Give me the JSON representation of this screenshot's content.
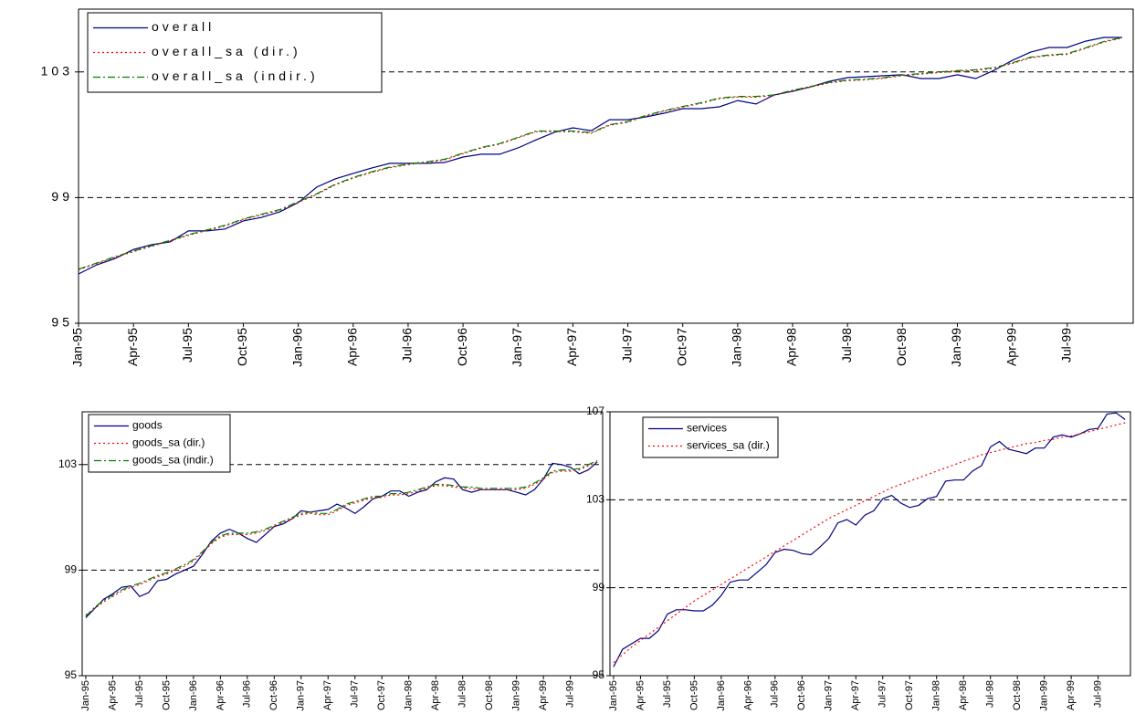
{
  "chart_data": [
    {
      "type": "line",
      "categories": [
        "Jan-95",
        null,
        null,
        "Apr-95",
        null,
        null,
        "Jul-95",
        null,
        null,
        "Oct-95",
        null,
        null,
        "Jan-96",
        null,
        null,
        "Apr-96",
        null,
        null,
        "Jul-96",
        null,
        null,
        "Oct-96",
        null,
        null,
        "Jan-97",
        null,
        null,
        "Apr-97",
        null,
        null,
        "Jul-97",
        null,
        null,
        "Oct-97",
        null,
        null,
        "Jan-98",
        null,
        null,
        "Apr-98",
        null,
        null,
        "Jul-98",
        null,
        null,
        "Oct-98",
        null,
        null,
        "Jan-99",
        null,
        null,
        "Apr-99",
        null,
        null,
        "Jul-99",
        null,
        null,
        null
      ],
      "series": [
        {
          "name": "overall",
          "color": "#000080",
          "values": [
            96.57,
            96.86,
            97.06,
            97.35,
            97.5,
            97.59,
            97.94,
            97.94,
            98.0,
            98.26,
            98.37,
            98.55,
            98.84,
            99.33,
            99.59,
            99.77,
            99.94,
            100.09,
            100.09,
            100.09,
            100.12,
            100.29,
            100.38,
            100.38,
            100.58,
            100.84,
            101.08,
            101.22,
            101.13,
            101.48,
            101.48,
            101.57,
            101.69,
            101.83,
            101.83,
            101.89,
            102.09,
            101.98,
            102.27,
            102.38,
            102.53,
            102.7,
            102.82,
            102.85,
            102.88,
            102.91,
            102.79,
            102.79,
            102.91,
            102.79,
            103.05,
            103.37,
            103.63,
            103.78,
            103.78,
            103.98,
            104.1,
            104.1
          ]
        },
        {
          "name": "overall_sa (dir.)",
          "color": "#ff0000",
          "values": [
            96.7,
            96.9,
            97.1,
            97.28,
            97.45,
            97.62,
            97.8,
            97.95,
            98.1,
            98.3,
            98.45,
            98.6,
            98.85,
            99.1,
            99.4,
            99.62,
            99.8,
            99.95,
            100.05,
            100.12,
            100.2,
            100.4,
            100.58,
            100.7,
            100.9,
            101.1,
            101.1,
            101.1,
            101.05,
            101.3,
            101.4,
            101.6,
            101.75,
            101.88,
            102.0,
            102.15,
            102.2,
            102.2,
            102.25,
            102.4,
            102.52,
            102.65,
            102.72,
            102.75,
            102.8,
            102.88,
            102.93,
            102.98,
            103.02,
            103.05,
            103.12,
            103.27,
            103.45,
            103.52,
            103.56,
            103.75,
            103.95,
            104.08
          ]
        },
        {
          "name": "overall_sa (indir.)",
          "color": "#008000",
          "values": [
            96.72,
            96.92,
            97.12,
            97.3,
            97.47,
            97.64,
            97.82,
            97.97,
            98.12,
            98.32,
            98.47,
            98.62,
            98.87,
            99.12,
            99.42,
            99.64,
            99.82,
            99.97,
            100.07,
            100.14,
            100.22,
            100.42,
            100.6,
            100.72,
            100.92,
            101.12,
            101.12,
            101.12,
            101.07,
            101.32,
            101.42,
            101.62,
            101.77,
            101.9,
            102.02,
            102.17,
            102.22,
            102.22,
            102.27,
            102.42,
            102.54,
            102.67,
            102.74,
            102.77,
            102.82,
            102.9,
            102.95,
            103.0,
            103.04,
            103.07,
            103.14,
            103.29,
            103.47,
            103.54,
            103.58,
            103.77,
            103.97,
            104.1
          ]
        }
      ],
      "ylim": [
        95,
        105
      ],
      "yticks": [
        95,
        99,
        103
      ],
      "grid": true,
      "legend": "top-left"
    },
    {
      "type": "line",
      "categories": [
        "Jan-95",
        null,
        null,
        "Apr-95",
        null,
        null,
        "Jul-95",
        null,
        null,
        "Oct-95",
        null,
        null,
        "Jan-96",
        null,
        null,
        "Apr-96",
        null,
        null,
        "Jul-96",
        null,
        null,
        "Oct-96",
        null,
        null,
        "Jan-97",
        null,
        null,
        "Apr-97",
        null,
        null,
        "Jul-97",
        null,
        null,
        "Oct-97",
        null,
        null,
        "Jan-98",
        null,
        null,
        "Apr-98",
        null,
        null,
        "Jul-98",
        null,
        null,
        "Oct-98",
        null,
        null,
        "Jan-99",
        null,
        null,
        "Apr-99",
        null,
        null,
        "Jul-99",
        null,
        null,
        null
      ],
      "series": [
        {
          "name": "goods",
          "color": "#000080",
          "values": [
            97.2,
            97.55,
            97.9,
            98.1,
            98.35,
            98.4,
            98.0,
            98.15,
            98.6,
            98.65,
            98.85,
            99.0,
            99.15,
            99.6,
            100.1,
            100.4,
            100.55,
            100.4,
            100.2,
            100.05,
            100.35,
            100.65,
            100.75,
            100.95,
            101.25,
            101.2,
            101.25,
            101.3,
            101.5,
            101.35,
            101.15,
            101.4,
            101.7,
            101.8,
            102.0,
            102.0,
            101.8,
            101.95,
            102.05,
            102.35,
            102.5,
            102.45,
            102.05,
            101.95,
            102.05,
            102.05,
            102.05,
            102.05,
            101.95,
            101.85,
            102.05,
            102.45,
            103.05,
            103.0,
            102.9,
            102.65,
            102.8,
            103.1
          ]
        },
        {
          "name": "goods_sa (dir.)",
          "color": "#ff0000",
          "values": [
            97.3,
            97.55,
            97.8,
            98.0,
            98.2,
            98.35,
            98.45,
            98.6,
            98.75,
            98.85,
            99.0,
            99.15,
            99.35,
            99.65,
            100.0,
            100.25,
            100.35,
            100.35,
            100.35,
            100.4,
            100.5,
            100.65,
            100.8,
            100.95,
            101.1,
            101.15,
            101.1,
            101.1,
            101.25,
            101.45,
            101.55,
            101.65,
            101.75,
            101.75,
            101.85,
            101.85,
            101.9,
            102.0,
            102.1,
            102.2,
            102.2,
            102.15,
            102.1,
            102.1,
            102.05,
            102.05,
            102.05,
            102.05,
            102.05,
            102.1,
            102.25,
            102.45,
            102.7,
            102.75,
            102.75,
            102.8,
            102.95,
            103.1
          ]
        },
        {
          "name": "goods_sa (indir.)",
          "color": "#008000",
          "values": [
            97.25,
            97.6,
            97.85,
            98.05,
            98.25,
            98.4,
            98.5,
            98.65,
            98.8,
            98.9,
            99.05,
            99.2,
            99.4,
            99.7,
            100.05,
            100.3,
            100.4,
            100.4,
            100.4,
            100.45,
            100.55,
            100.7,
            100.85,
            101.0,
            101.15,
            101.2,
            101.15,
            101.15,
            101.3,
            101.5,
            101.6,
            101.7,
            101.8,
            101.8,
            101.9,
            101.9,
            101.95,
            102.05,
            102.15,
            102.25,
            102.25,
            102.2,
            102.15,
            102.15,
            102.1,
            102.1,
            102.1,
            102.1,
            102.1,
            102.15,
            102.3,
            102.5,
            102.75,
            102.8,
            102.8,
            102.85,
            103.0,
            103.15
          ]
        }
      ],
      "ylim": [
        95,
        105
      ],
      "yticks": [
        95,
        99,
        103
      ],
      "grid": true,
      "legend": "top-left"
    },
    {
      "type": "line",
      "categories": [
        "Jan-95",
        null,
        null,
        "Apr-95",
        null,
        null,
        "Jul-95",
        null,
        null,
        "Oct-95",
        null,
        null,
        "Jan-96",
        null,
        null,
        "Apr-96",
        null,
        null,
        "Jul-96",
        null,
        null,
        "Oct-96",
        null,
        null,
        "Jan-97",
        null,
        null,
        "Apr-97",
        null,
        null,
        "Jul-97",
        null,
        null,
        "Oct-97",
        null,
        null,
        "Jan-98",
        null,
        null,
        "Apr-98",
        null,
        null,
        "Jul-98",
        null,
        null,
        "Oct-98",
        null,
        null,
        "Jan-99",
        null,
        null,
        "Apr-99",
        null,
        null,
        "Jul-99",
        null,
        null,
        null
      ],
      "series": [
        {
          "name": "services",
          "color": "#000080",
          "values": [
            95.4,
            96.2,
            96.45,
            96.7,
            96.7,
            97.05,
            97.8,
            98.0,
            98.0,
            97.95,
            97.95,
            98.2,
            98.65,
            99.25,
            99.35,
            99.35,
            99.7,
            100.05,
            100.6,
            100.75,
            100.7,
            100.55,
            100.5,
            100.85,
            101.25,
            101.95,
            102.1,
            101.85,
            102.3,
            102.5,
            103.05,
            103.2,
            102.85,
            102.65,
            102.75,
            103.05,
            103.15,
            103.85,
            103.9,
            103.9,
            104.3,
            104.55,
            105.4,
            105.65,
            105.3,
            105.2,
            105.1,
            105.35,
            105.35,
            105.85,
            105.95,
            105.85,
            106.0,
            106.2,
            106.25,
            106.9,
            106.95,
            106.65
          ]
        },
        {
          "name": "services_sa (dir.)",
          "color": "#ff0000",
          "values": [
            95.6,
            95.95,
            96.3,
            96.6,
            96.9,
            97.2,
            97.5,
            97.8,
            98.1,
            98.4,
            98.65,
            98.9,
            99.15,
            99.4,
            99.65,
            99.9,
            100.15,
            100.4,
            100.65,
            100.9,
            101.15,
            101.4,
            101.65,
            101.9,
            102.15,
            102.35,
            102.55,
            102.75,
            102.95,
            103.15,
            103.35,
            103.55,
            103.7,
            103.85,
            104.0,
            104.15,
            104.3,
            104.45,
            104.6,
            104.75,
            104.9,
            105.05,
            105.15,
            105.25,
            105.35,
            105.45,
            105.55,
            105.6,
            105.7,
            105.75,
            105.85,
            105.9,
            106.0,
            106.1,
            106.2,
            106.3,
            106.4,
            106.5
          ]
        }
      ],
      "ylim": [
        95,
        107
      ],
      "yticks": [
        95,
        99,
        103,
        107
      ],
      "grid": true,
      "legend": "top-left"
    }
  ]
}
